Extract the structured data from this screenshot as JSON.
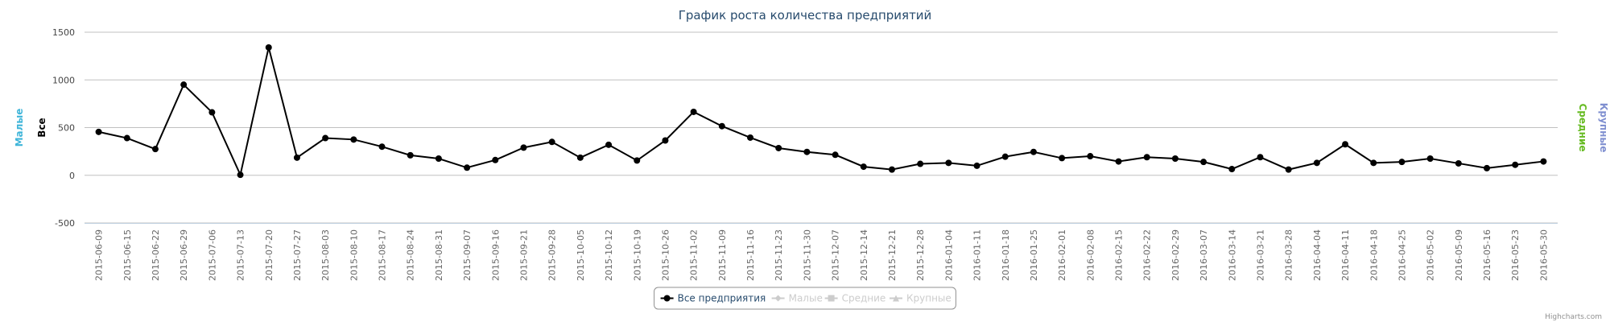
{
  "chart_data": {
    "type": "line",
    "title": "График роста количества предприятий",
    "y_axis_titles_left": [
      {
        "text": "Малые",
        "color": "#3fb5d9"
      },
      {
        "text": "Все",
        "color": "#000000"
      }
    ],
    "y_axis_titles_right": [
      {
        "text": "Средние",
        "color": "#66bb22"
      },
      {
        "text": "Крупные",
        "color": "#7f8fd0"
      }
    ],
    "categories": [
      "2015-06-09",
      "2015-06-15",
      "2015-06-22",
      "2015-06-29",
      "2015-07-06",
      "2015-07-13",
      "2015-07-20",
      "2015-07-27",
      "2015-08-03",
      "2015-08-10",
      "2015-08-17",
      "2015-08-24",
      "2015-08-31",
      "2015-09-07",
      "2015-09-16",
      "2015-09-21",
      "2015-09-28",
      "2015-10-05",
      "2015-10-12",
      "2015-10-19",
      "2015-10-26",
      "2015-11-02",
      "2015-11-09",
      "2015-11-16",
      "2015-11-23",
      "2015-11-30",
      "2015-12-07",
      "2015-12-14",
      "2015-12-21",
      "2015-12-28",
      "2016-01-04",
      "2016-01-11",
      "2016-01-18",
      "2016-01-25",
      "2016-02-01",
      "2016-02-08",
      "2016-02-15",
      "2016-02-22",
      "2016-02-29",
      "2016-03-07",
      "2016-03-14",
      "2016-03-21",
      "2016-03-28",
      "2016-04-04",
      "2016-04-11",
      "2016-04-18",
      "2016-04-25",
      "2016-05-02",
      "2016-05-09",
      "2016-05-16",
      "2016-05-23",
      "2016-05-30"
    ],
    "series": [
      {
        "name": "Все предприятия",
        "color": "#000000",
        "visible": true,
        "values": [
          455,
          390,
          275,
          950,
          660,
          5,
          1340,
          185,
          390,
          375,
          300,
          210,
          175,
          80,
          160,
          290,
          350,
          185,
          320,
          155,
          365,
          665,
          515,
          395,
          285,
          245,
          215,
          90,
          60,
          120,
          130,
          100,
          195,
          245,
          180,
          200,
          145,
          190,
          175,
          140,
          65,
          190,
          60,
          130,
          325,
          130,
          140,
          175,
          125,
          75,
          110,
          145
        ]
      },
      {
        "name": "Малые",
        "color": "#cccccc",
        "visible": false,
        "marker": "diamond"
      },
      {
        "name": "Средние",
        "color": "#cccccc",
        "visible": false,
        "marker": "square"
      },
      {
        "name": "Крупные",
        "color": "#cccccc",
        "visible": false,
        "marker": "triangle"
      }
    ],
    "ylim": [
      -500,
      1500
    ],
    "yticks": [
      -500,
      0,
      500,
      1000,
      1500
    ],
    "grid": true,
    "legend": "bottom",
    "credits": "Highcharts.com"
  }
}
